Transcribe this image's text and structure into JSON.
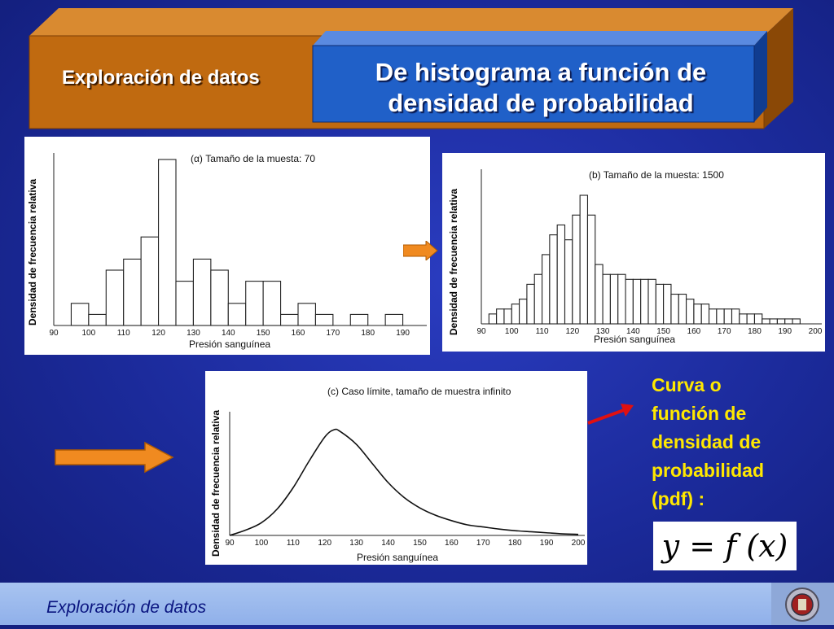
{
  "header": {
    "section_title": "Exploración de datos",
    "main_title_line1": "De histograma a función de",
    "main_title_line2": "densidad de probabilidad"
  },
  "colors": {
    "background": "#1b2a9a",
    "banner_orange": "#c06a10",
    "banner_blue": "#2060c8",
    "arrow_orange": "#f08a20",
    "arrow_red": "#e01010",
    "side_text": "#ffe800",
    "footer": "#a8c4f0"
  },
  "side": {
    "line1": "Curva o",
    "line2": "función de",
    "line3": "densidad de",
    "line4": "probabilidad",
    "line5": "(pdf) :",
    "formula": "y = f (x)"
  },
  "footer": {
    "text": "Exploración de datos"
  },
  "icons": [
    "arrow-right-icon",
    "arrow-right-icon",
    "red-arrow-icon",
    "institution-logo-icon"
  ],
  "chart_data": [
    {
      "type": "bar",
      "title": "(α) Tamaño de la muesta: 70",
      "xlabel": "Presión sanguínea",
      "ylabel": "Densidad de frecuencia relativa",
      "xlim": [
        90,
        195
      ],
      "x_ticks": [
        "90",
        "100",
        "110",
        "120",
        "130",
        "140",
        "150",
        "160",
        "170",
        "180",
        "190"
      ],
      "bin_width": 5,
      "bin_starts": [
        95,
        100,
        105,
        110,
        115,
        120,
        125,
        130,
        135,
        140,
        145,
        150,
        155,
        160,
        165,
        170,
        175,
        180,
        185,
        190
      ],
      "values": [
        2,
        1,
        5,
        6,
        8,
        15,
        4,
        6,
        5,
        2,
        4,
        4,
        1,
        2,
        1,
        0,
        1,
        0,
        1,
        0
      ],
      "grid": false
    },
    {
      "type": "bar",
      "title": "(b) Tamaño de la muesta: 1500",
      "xlabel": "Presión sanguínea",
      "ylabel": "Densidad de frecuencia relativa",
      "xlim": [
        90,
        200
      ],
      "x_ticks": [
        "90",
        "100",
        "110",
        "120",
        "130",
        "140",
        "150",
        "160",
        "170",
        "180",
        "190",
        "200"
      ],
      "bin_width": 2.5,
      "bin_starts": [
        92.5,
        95,
        97.5,
        100,
        102.5,
        105,
        107.5,
        110,
        112.5,
        115,
        117.5,
        120,
        122.5,
        125,
        127.5,
        130,
        132.5,
        135,
        137.5,
        140,
        142.5,
        145,
        147.5,
        150,
        152.5,
        155,
        157.5,
        160,
        162.5,
        165,
        167.5,
        170,
        172.5,
        175,
        177.5,
        180,
        182.5,
        185,
        187.5,
        190,
        192.5,
        195
      ],
      "values": [
        2,
        3,
        3,
        4,
        5,
        8,
        10,
        14,
        18,
        20,
        17,
        22,
        26,
        22,
        12,
        10,
        10,
        10,
        9,
        9,
        9,
        9,
        8,
        8,
        6,
        6,
        5,
        4,
        4,
        3,
        3,
        3,
        3,
        2,
        2,
        2,
        1,
        1,
        1,
        1,
        1,
        0
      ],
      "grid": false
    },
    {
      "type": "line",
      "title": "(c) Caso límite, tamaño de muestra infinito",
      "xlabel": "Presión sanguínea",
      "ylabel": "Densidad de frecuencia relativa",
      "xlim": [
        90,
        200
      ],
      "x_ticks": [
        "90",
        "100",
        "110",
        "120",
        "130",
        "140",
        "150",
        "160",
        "170",
        "180",
        "190",
        "200"
      ],
      "x": [
        90,
        95,
        100,
        105,
        110,
        115,
        120,
        123,
        125,
        130,
        135,
        140,
        145,
        150,
        155,
        160,
        165,
        170,
        175,
        180,
        185,
        190,
        195,
        200
      ],
      "y": [
        0.0,
        0.05,
        0.12,
        0.25,
        0.45,
        0.7,
        0.93,
        1.0,
        0.98,
        0.86,
        0.68,
        0.5,
        0.36,
        0.26,
        0.19,
        0.14,
        0.1,
        0.08,
        0.06,
        0.045,
        0.035,
        0.025,
        0.015,
        0.01
      ],
      "grid": false
    }
  ]
}
